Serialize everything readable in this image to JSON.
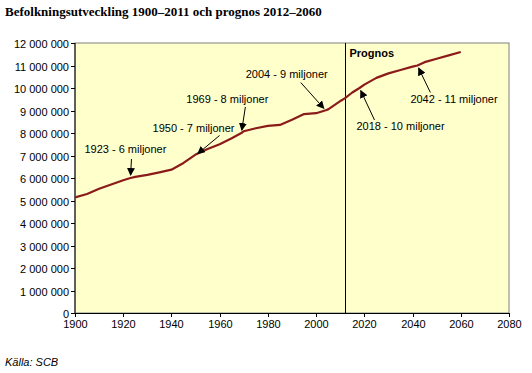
{
  "chart_data": {
    "type": "line",
    "title": "Befolkningsutveckling 1900–2011 och prognos 2012–2060",
    "source": "Källa: SCB",
    "x": [
      1900,
      1905,
      1910,
      1915,
      1920,
      1923,
      1925,
      1930,
      1935,
      1940,
      1945,
      1950,
      1955,
      1960,
      1965,
      1969,
      1970,
      1975,
      1980,
      1985,
      1990,
      1995,
      2000,
      2004,
      2005,
      2010,
      2011,
      2012,
      2015,
      2018,
      2020,
      2025,
      2030,
      2035,
      2040,
      2042,
      2045,
      2050,
      2055,
      2060
    ],
    "series": [
      {
        "color": "#8b1a1a",
        "values": [
          5140000,
          5290000,
          5520000,
          5710000,
          5900000,
          6000000,
          6050000,
          6140000,
          6250000,
          6370000,
          6670000,
          7040000,
          7290000,
          7500000,
          7770000,
          8000000,
          8080000,
          8210000,
          8320000,
          8360000,
          8590000,
          8840000,
          8880000,
          9010000,
          9050000,
          9420000,
          9480000,
          9550000,
          9800000,
          10000000,
          10150000,
          10450000,
          10650000,
          10800000,
          10950000,
          11000000,
          11150000,
          11300000,
          11450000,
          11600000
        ]
      }
    ],
    "xlim": [
      1900,
      2080
    ],
    "xticks": [
      1900,
      1920,
      1940,
      1960,
      1980,
      2000,
      2020,
      2040,
      2060,
      2080
    ],
    "ylim": [
      0,
      12000000
    ],
    "yticks": [
      0,
      {
        "value": 1000000,
        "label": "1 000 000"
      },
      {
        "value": 2000000,
        "label": "2 000 000"
      },
      {
        "value": 3000000,
        "label": "3 000 000"
      },
      {
        "value": 4000000,
        "label": "4 000 000"
      },
      {
        "value": 5000000,
        "label": "5 000 000"
      },
      {
        "value": 6000000,
        "label": "6 000 000"
      },
      {
        "value": 7000000,
        "label": "7 000 000"
      },
      {
        "value": 8000000,
        "label": "8 000 000"
      },
      {
        "value": 9000000,
        "label": "9 000 000"
      },
      {
        "value": 10000000,
        "label": "10 000 000"
      },
      {
        "value": 11000000,
        "label": "11 000 000"
      },
      {
        "value": 12000000,
        "label": "12 000 000"
      }
    ],
    "grid": false,
    "divider": {
      "x": 2012,
      "label": "Prognos"
    },
    "annotations": [
      {
        "text": "1923 - 6 miljoner",
        "x": 1923,
        "y": 6000000
      },
      {
        "text": "1950 - 7 miljoner",
        "x": 1950,
        "y": 7000000
      },
      {
        "text": "1969 - 8 miljoner",
        "x": 1969,
        "y": 8000000
      },
      {
        "text": "2004 - 9 miljoner",
        "x": 2004,
        "y": 9000000
      },
      {
        "text": "2018 - 10 miljoner",
        "x": 2018,
        "y": 10000000
      },
      {
        "text": "2042 - 11 miljoner",
        "x": 2042,
        "y": 11000000
      }
    ]
  }
}
